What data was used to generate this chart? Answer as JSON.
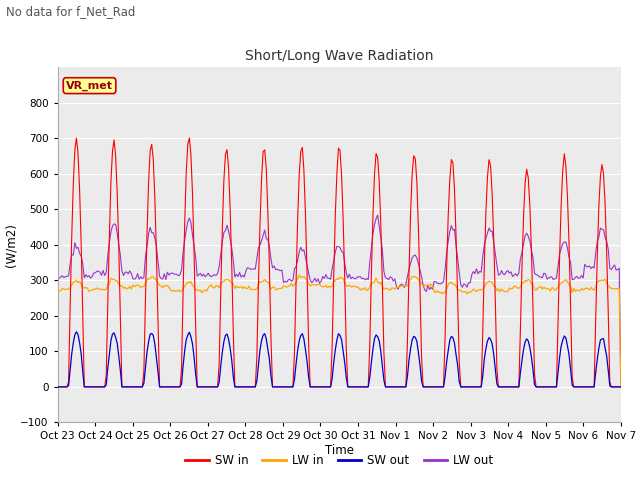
{
  "title": "Short/Long Wave Radiation",
  "subtitle": "No data for f_Net_Rad",
  "xlabel": "Time",
  "ylabel": "(W/m2)",
  "ylim": [
    -100,
    900
  ],
  "yticks": [
    -100,
    0,
    100,
    200,
    300,
    400,
    500,
    600,
    700,
    800
  ],
  "x_labels": [
    "Oct 23",
    "Oct 24",
    "Oct 25",
    "Oct 26",
    "Oct 27",
    "Oct 28",
    "Oct 29",
    "Oct 30",
    "Oct 31",
    "Nov 1",
    "Nov 2",
    "Nov 3",
    "Nov 4",
    "Nov 5",
    "Nov 6",
    "Nov 7"
  ],
  "colors": {
    "SW_in": "#ff0000",
    "LW_in": "#ffa500",
    "SW_out": "#0000cc",
    "LW_out": "#9933cc"
  },
  "plot_bg_color": "#ebebeb",
  "legend_box_facecolor": "#ffff99",
  "legend_box_edge": "#cc0000",
  "legend_label": "VR_met",
  "SW_in_peaks": [
    700,
    695,
    685,
    705,
    670,
    675,
    675,
    672,
    660,
    658,
    640,
    640,
    612,
    650,
    630
  ],
  "n_days": 15
}
